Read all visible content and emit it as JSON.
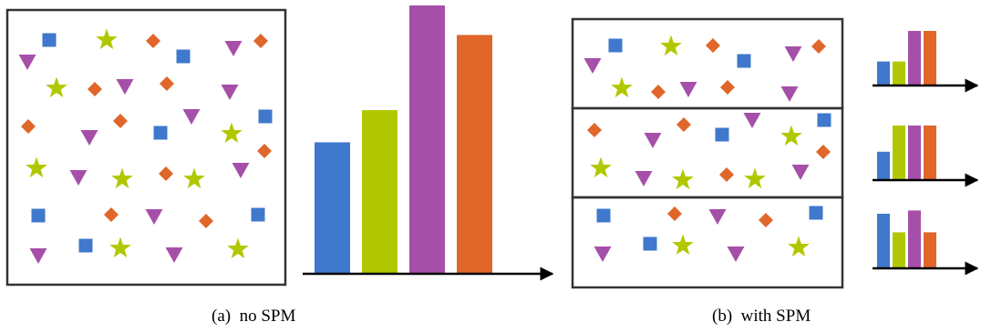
{
  "captions": {
    "a": "(a)  no SPM",
    "b": "(b)  with SPM"
  },
  "colors": {
    "blue": "#3f78cc",
    "green": "#b1c800",
    "purple": "#a64fa8",
    "orange": "#e0662a",
    "frame": "#333333",
    "axis": "#000000"
  },
  "shape_legend": {
    "square": "blue",
    "star": "green",
    "triangle": "purple",
    "diamond": "orange"
  },
  "no_spm_histogram": [
    {
      "category": "square",
      "color": "blue",
      "value": 0.49
    },
    {
      "category": "star",
      "color": "green",
      "value": 0.61
    },
    {
      "category": "triangle",
      "color": "purple",
      "value": 1.0
    },
    {
      "category": "diamond",
      "color": "orange",
      "value": 0.89
    }
  ],
  "spm_histograms": [
    {
      "region": "top",
      "values": [
        0.44,
        0.44,
        1.0,
        1.0
      ]
    },
    {
      "region": "middle",
      "values": [
        0.52,
        1.0,
        1.0,
        1.0
      ]
    },
    {
      "region": "bottom",
      "values": [
        1.0,
        0.66,
        1.06,
        0.66
      ]
    }
  ]
}
